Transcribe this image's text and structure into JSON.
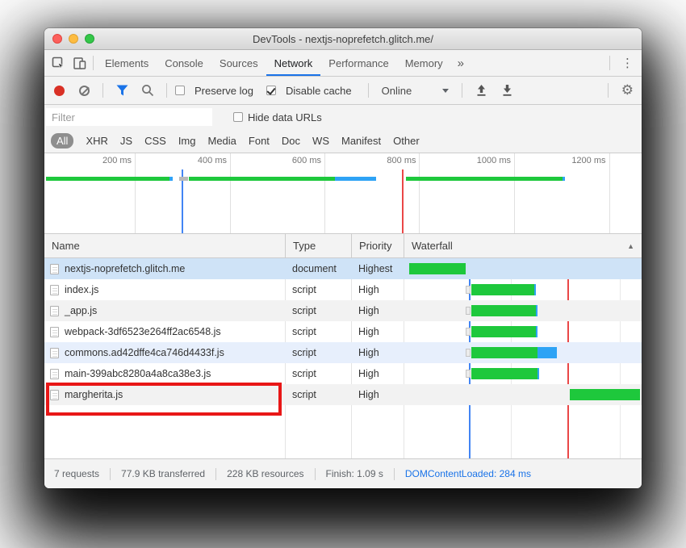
{
  "window": {
    "title": "DevTools - nextjs-noprefetch.glitch.me/"
  },
  "tabs": {
    "items": [
      "Elements",
      "Console",
      "Sources",
      "Network",
      "Performance",
      "Memory"
    ],
    "active": "Network",
    "overflow_label": "»",
    "menu_label": "⋮"
  },
  "toolbar": {
    "preserve_log_label": "Preserve log",
    "preserve_log_checked": false,
    "disable_cache_label": "Disable cache",
    "disable_cache_checked": true,
    "throttling_value": "Online"
  },
  "filter_bar": {
    "placeholder": "Filter",
    "hide_data_urls_label": "Hide data URLs",
    "hide_data_urls_checked": false
  },
  "filter_chips": {
    "items": [
      "All",
      "XHR",
      "JS",
      "CSS",
      "Img",
      "Media",
      "Font",
      "Doc",
      "WS",
      "Manifest",
      "Other"
    ],
    "active": "All"
  },
  "overview": {
    "ticks": [
      {
        "label": "200 ms",
        "pct": 15.14
      },
      {
        "label": "400 ms",
        "pct": 31.08
      },
      {
        "label": "600 ms",
        "pct": 46.89
      },
      {
        "label": "800 ms",
        "pct": 62.77
      },
      {
        "label": "1000 ms",
        "pct": 78.65
      },
      {
        "label": "1200 ms",
        "pct": 94.53
      }
    ],
    "bars": [
      {
        "left_pct": 0.3,
        "segments": [
          {
            "kind": "green",
            "pct": 20.7
          },
          {
            "kind": "blue",
            "pct": 0.5
          }
        ]
      },
      {
        "left_pct": 22.6,
        "segments": [
          {
            "kind": "gray",
            "pct": 1.4
          }
        ]
      },
      {
        "left_pct": 24.2,
        "segments": [
          {
            "kind": "green",
            "pct": 24.5
          },
          {
            "kind": "blue",
            "pct": 6.8
          }
        ]
      },
      {
        "left_pct": 60.5,
        "segments": [
          {
            "kind": "green",
            "pct": 26.2
          },
          {
            "kind": "blue",
            "pct": 0.5
          }
        ]
      }
    ],
    "dcl_line_pct": 23.0,
    "load_line_pct": 59.9
  },
  "table": {
    "columns": [
      "Name",
      "Type",
      "Priority",
      "Waterfall"
    ],
    "sort_indicator": "▲",
    "waterfall_lines": {
      "dcl_pct": 27.5,
      "load_pct": 68.8,
      "gridline_pcts": [
        45.1,
        90.8
      ]
    },
    "rows": [
      {
        "name": "nextjs-noprefetch.glitch.me",
        "type": "document",
        "priority": "Highest",
        "bg": "selected",
        "bar": {
          "left_pct": 2.4,
          "green_pct": 23.7,
          "blue_pct": 0
        }
      },
      {
        "name": "index.js",
        "type": "script",
        "priority": "High",
        "bg": "white",
        "bar": {
          "stall_left_pct": 26.1,
          "stall_pct": 2.2,
          "left_pct": 28.5,
          "green_pct": 26.4,
          "blue_pct": 0.7
        }
      },
      {
        "name": "_app.js",
        "type": "script",
        "priority": "High",
        "bg": "stripe",
        "bar": {
          "stall_left_pct": 26.1,
          "stall_pct": 2.2,
          "left_pct": 28.5,
          "green_pct": 27.1,
          "blue_pct": 0.7
        }
      },
      {
        "name": "webpack-3df6523e264ff2ac6548.js",
        "type": "script",
        "priority": "High",
        "bg": "white",
        "bar": {
          "stall_left_pct": 26.1,
          "stall_pct": 2.2,
          "left_pct": 28.5,
          "green_pct": 27.1,
          "blue_pct": 0.7
        }
      },
      {
        "name": "commons.ad42dffe4ca746d4433f.js",
        "type": "script",
        "priority": "High",
        "bg": "selected-light",
        "bar": {
          "stall_left_pct": 26.1,
          "stall_pct": 2.2,
          "left_pct": 28.5,
          "green_pct": 27.8,
          "blue_pct": 8.0
        }
      },
      {
        "name": "main-399abc8280a4a8ca38e3.js",
        "type": "script",
        "priority": "High",
        "bg": "white",
        "bar": {
          "stall_left_pct": 26.1,
          "stall_pct": 2.2,
          "left_pct": 28.5,
          "green_pct": 27.8,
          "blue_pct": 0.7
        }
      },
      {
        "name": "margherita.js",
        "type": "script",
        "priority": "High",
        "bg": "stripe",
        "annotated": true,
        "bar": {
          "left_pct": 69.8,
          "green_pct": 29.5,
          "blue_pct": 0
        }
      }
    ]
  },
  "status": {
    "items": [
      {
        "text": "7 requests",
        "accent": false
      },
      {
        "text": "77.9 KB transferred",
        "accent": false
      },
      {
        "text": "228 KB resources",
        "accent": false
      },
      {
        "text": "Finish: 1.09 s",
        "accent": false
      },
      {
        "text": "DOMContentLoaded: 284 ms",
        "accent": true
      }
    ]
  },
  "colors": {
    "accent_blue": "#1a73e8",
    "bar_green": "#1ec83c",
    "bar_blue": "#2ea3f5",
    "dcl_line": "#4285f4",
    "load_line": "#ea4747",
    "highlight_red": "#e81717",
    "row_selected": "#cfe3f7",
    "row_selected_light": "#e7effc",
    "row_stripe": "#f2f2f2",
    "record_red": "#d93025"
  }
}
